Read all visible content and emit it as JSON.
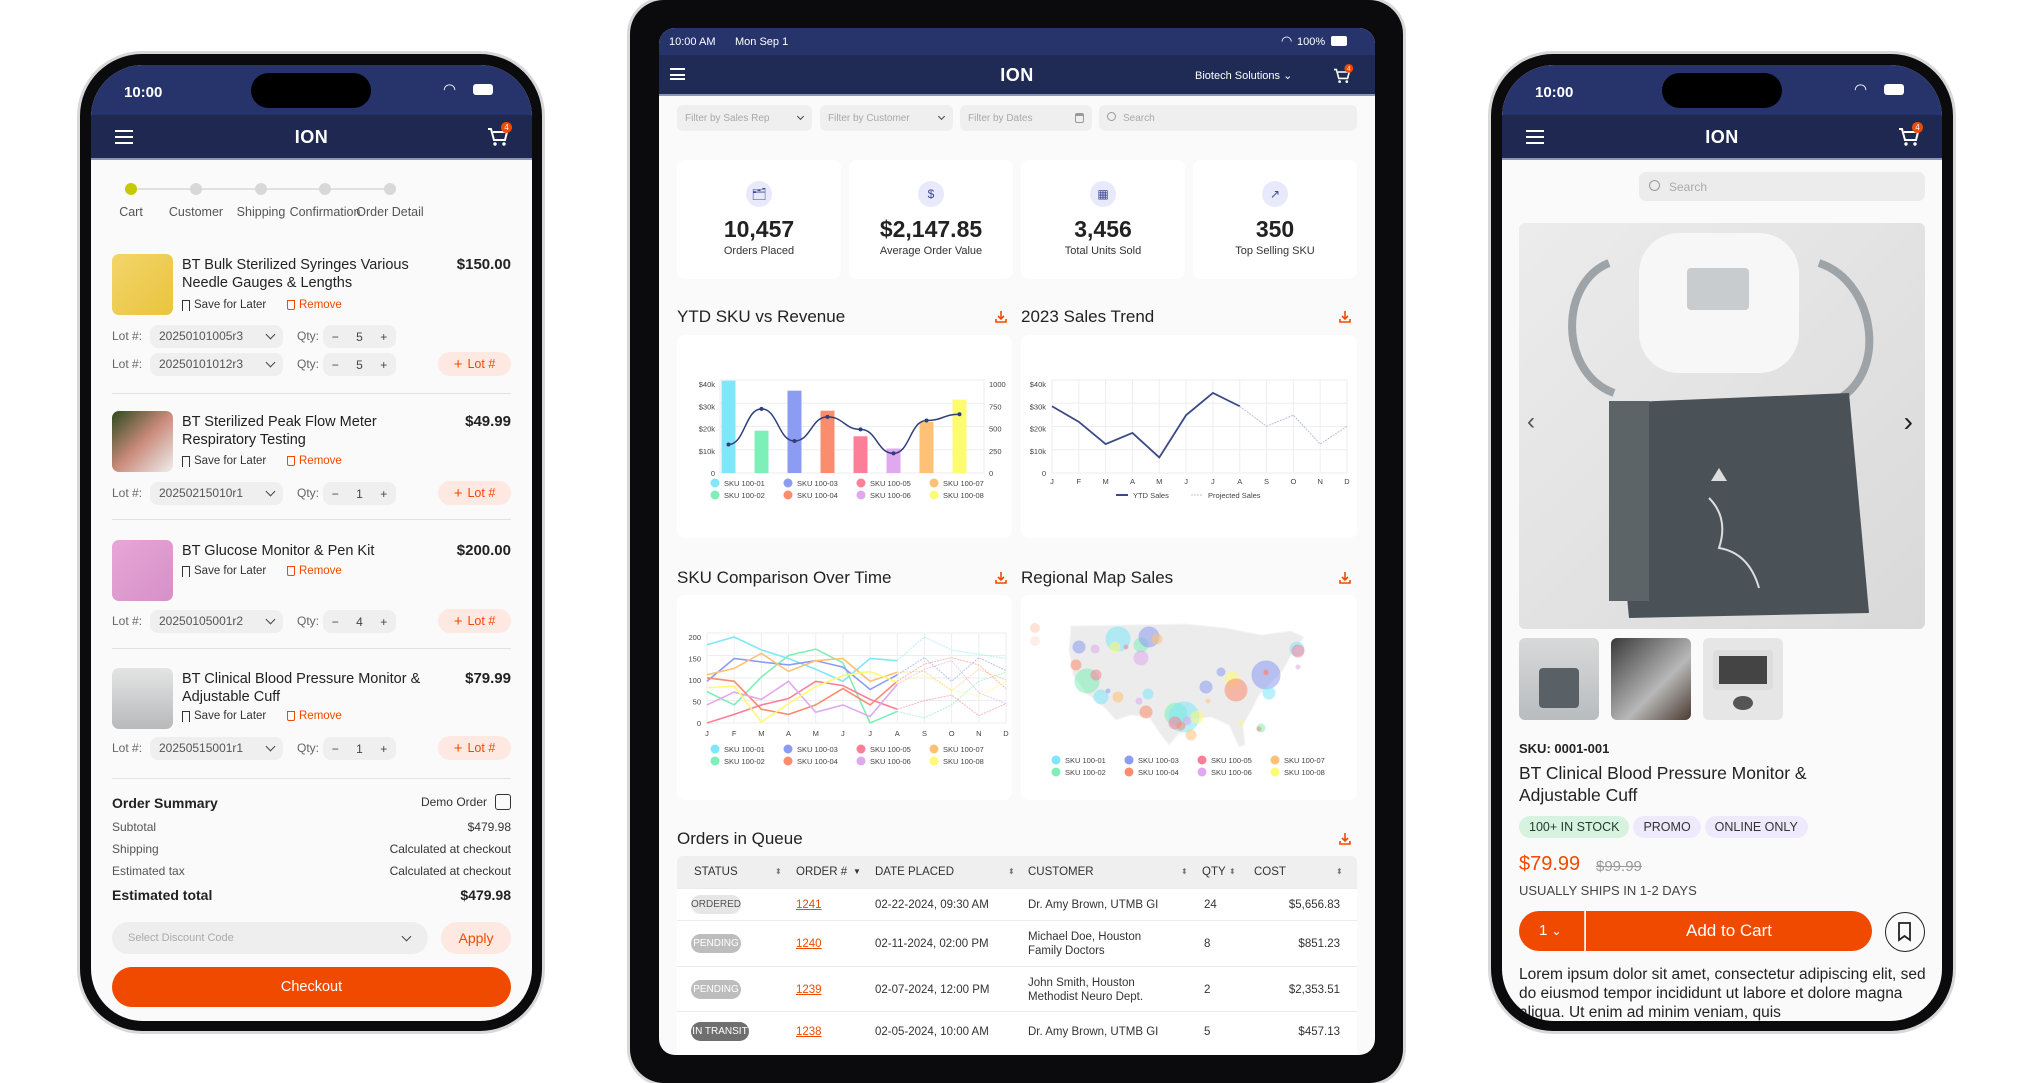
{
  "left_phone": {
    "status_time": "10:00",
    "brand": "ION",
    "cart_count": "4",
    "steps": [
      "Cart",
      "Customer",
      "Shipping",
      "Confirmation",
      "Order Detail"
    ],
    "active_step": 0,
    "save_label": "Save for Later",
    "remove_label": "Remove",
    "lot_label": "Lot #:",
    "qty_label": "Qty:",
    "add_lot_label": "Lot #",
    "items": [
      {
        "title": "BT Bulk Sterilized Syringes Various Needle Gauges & Lengths",
        "price": "$150.00",
        "lots": [
          {
            "lot": "20250101005r3",
            "qty": "5"
          },
          {
            "lot": "20250101012r3",
            "qty": "5"
          }
        ]
      },
      {
        "title": "BT Sterilized Peak Flow Meter Respiratory Testing",
        "price": "$49.99",
        "lots": [
          {
            "lot": "20250215010r1",
            "qty": "1"
          }
        ]
      },
      {
        "title": "BT Glucose Monitor & Pen Kit",
        "price": "$200.00",
        "lots": [
          {
            "lot": "20250105001r2",
            "qty": "4"
          }
        ]
      },
      {
        "title": "BT Clinical Blood Pressure Monitor & Adjustable Cuff",
        "price": "$79.99",
        "lots": [
          {
            "lot": "20250515001r1",
            "qty": "1"
          }
        ]
      }
    ],
    "summary": {
      "title": "Order Summary",
      "demo_label": "Demo Order",
      "demo_checked": false,
      "subtotal_label": "Subtotal",
      "subtotal": "$479.98",
      "shipping_label": "Shipping",
      "shipping": "Calculated at checkout",
      "tax_label": "Estimated tax",
      "tax": "Calculated at checkout",
      "total_label": "Estimated total",
      "total": "$479.98"
    },
    "discount_placeholder": "Select Discount Code",
    "apply_label": "Apply",
    "checkout_label": "Checkout"
  },
  "tablet": {
    "status_time": "10:00 AM",
    "status_date": "Mon Sep 1",
    "battery": "100%",
    "brand": "ION",
    "account": "Biotech Solutions",
    "cart_count": "4",
    "filters": {
      "sales_rep": "Filter by Sales Rep",
      "customer": "Filter by Customer",
      "dates": "Filter by Dates",
      "search": "Search"
    },
    "kpis": [
      {
        "value": "10,457",
        "label": "Orders Placed",
        "icon": "orders-icon"
      },
      {
        "value": "$2,147.85",
        "label": "Average Order Value",
        "icon": "invoice-dollar-icon"
      },
      {
        "value": "3,456",
        "label": "Total Units Sold",
        "icon": "units-icon"
      },
      {
        "value": "350",
        "label": "Top Selling SKU",
        "icon": "trending-chart-icon"
      }
    ],
    "sections": {
      "ytd": "YTD SKU vs Revenue",
      "trend": "2023 Sales Trend",
      "comparison": "SKU Comparison Over Time",
      "map": "Regional Map Sales",
      "orders": "Orders in Queue"
    },
    "sku_colors": [
      "#7ee8fa",
      "#7eefb9",
      "#8c9cf2",
      "#fb8c6e",
      "#fb7f97",
      "#e0a8ee",
      "#ffc175",
      "#fdfb72"
    ],
    "chart_data": [
      {
        "type": "bar",
        "title": "YTD SKU vs Revenue",
        "categories": [
          "SKU 100-01",
          "SKU 100-02",
          "SKU 100-03",
          "SKU 100-04",
          "SKU 100-05",
          "SKU 100-06",
          "SKU 100-07",
          "SKU 100-08"
        ],
        "values": [
          42,
          19,
          37,
          28,
          16.5,
          11,
          23,
          33
        ],
        "line_values": [
          320,
          720,
          360,
          630,
          490,
          220,
          590,
          660
        ],
        "y_ticks": [
          "0",
          "$10k",
          "$20k",
          "$30k",
          "$40k"
        ],
        "y2_ticks": [
          "0",
          "250",
          "500",
          "750",
          "1000"
        ],
        "ylim": [
          0,
          40
        ],
        "y2lim": [
          0,
          1000
        ],
        "line_color": "#2f3f7a",
        "legend": "bottom"
      },
      {
        "type": "line",
        "title": "2023 Sales Trend",
        "x": [
          "J",
          "F",
          "M",
          "A",
          "M",
          "J",
          "J",
          "A",
          "S",
          "O",
          "N",
          "D"
        ],
        "series": [
          {
            "name": "YTD Sales",
            "values": [
              30,
              23,
              13,
              18,
              7,
              26,
              36,
              30,
              null,
              null,
              null,
              null
            ],
            "color": "#3b4a85"
          },
          {
            "name": "Projected Sales",
            "values": [
              null,
              null,
              null,
              null,
              null,
              null,
              null,
              30,
              21,
              26,
              13,
              21
            ],
            "color": "#b9bfdc",
            "dashed": true
          }
        ],
        "y_ticks": [
          "0",
          "$10k",
          "$20k",
          "$30k",
          "$40k"
        ],
        "ylim": [
          0,
          40
        ],
        "grid": true,
        "legend": "bottom"
      },
      {
        "type": "line",
        "title": "SKU Comparison Over Time",
        "x": [
          "J",
          "F",
          "M",
          "A",
          "M",
          "J",
          "J",
          "A",
          "S",
          "O",
          "N",
          "D"
        ],
        "actual_through": "A",
        "series": [
          {
            "name": "SKU 100-01",
            "values": [
              182,
              200,
              170,
              150,
              125,
              97,
              150,
              145,
              200,
              170,
              160,
              150
            ]
          },
          {
            "name": "SKU 100-02",
            "values": [
              73,
              42,
              107,
              157,
              172,
              140,
              0,
              27,
              12,
              42,
              97,
              118
            ]
          },
          {
            "name": "SKU 100-03",
            "values": [
              97,
              150,
              142,
              135,
              145,
              130,
              78,
              112,
              152,
              97,
              152,
              122
            ]
          },
          {
            "name": "SKU 100-04",
            "values": [
              105,
              97,
              32,
              20,
              42,
              80,
              42,
              97,
              137,
              152,
              135,
              80
            ]
          },
          {
            "name": "SKU 100-05",
            "values": [
              0,
              20,
              42,
              57,
              97,
              87,
              55,
              32,
              52,
              65,
              17,
              45
            ]
          },
          {
            "name": "SKU 100-06",
            "values": [
              42,
              72,
              55,
              97,
              25,
              42,
              15,
              90,
              125,
              145,
              70,
              45
            ]
          },
          {
            "name": "SKU 100-07",
            "values": [
              112,
              127,
              162,
              120,
              145,
              150,
              97,
              118,
              120,
              75,
              125,
              100
            ]
          },
          {
            "name": "SKU 100-08",
            "values": [
              82,
              86,
              2,
              45,
              85,
              110,
              120,
              95,
              112,
              77,
              62,
              97
            ]
          }
        ],
        "y_ticks": [
          "0",
          "50",
          "100",
          "150",
          "200"
        ],
        "ylim": [
          0,
          200
        ],
        "grid": true,
        "legend": "bottom"
      },
      {
        "type": "scatter",
        "title": "Regional Map Sales",
        "series_names": [
          "SKU 100-01",
          "SKU 100-02",
          "SKU 100-03",
          "SKU 100-04",
          "SKU 100-05",
          "SKU 100-06",
          "SKU 100-07",
          "SKU 100-08"
        ],
        "legend": "bottom"
      }
    ],
    "orders": {
      "columns": [
        "STATUS",
        "ORDER #",
        "DATE PLACED",
        "CUSTOMER",
        "QTY",
        "COST"
      ],
      "rows": [
        {
          "status": "ORDERED",
          "order": "1241",
          "date": "02-22-2024, 09:30 AM",
          "customer": "Dr. Amy Brown, UTMB GI",
          "qty": "24",
          "cost": "$5,656.83"
        },
        {
          "status": "PENDING",
          "order": "1240",
          "date": "02-11-2024, 02:00 PM",
          "customer": "Michael Doe, Houston Family Doctors",
          "qty": "8",
          "cost": "$851.23"
        },
        {
          "status": "PENDING",
          "order": "1239",
          "date": "02-07-2024, 12:00 PM",
          "customer": "John Smith, Houston Methodist Neuro Dept.",
          "qty": "2",
          "cost": "$2,353.51"
        },
        {
          "status": "IN TRANSIT",
          "order": "1238",
          "date": "02-05-2024, 10:00 AM",
          "customer": "Dr. Amy Brown, UTMB GI",
          "qty": "5",
          "cost": "$457.13"
        }
      ]
    }
  },
  "right_phone": {
    "status_time": "10:00",
    "brand": "ION",
    "cart_count": "4",
    "search_placeholder": "Search",
    "sku": "SKU: 0001-001",
    "title": "BT Clinical Blood Pressure Monitor & Adjustable Cuff",
    "chips": [
      "100+ IN STOCK",
      "PROMO",
      "ONLINE ONLY"
    ],
    "price": "$79.99",
    "old_price": "$99.99",
    "shipping_note": "USUALLY SHIPS IN 1-2 DAYS",
    "qty": "1",
    "add_to_cart": "Add to Cart",
    "description": "Lorem ipsum dolor sit amet, consectetur adipiscing elit, sed do eiusmod tempor incididunt ut labore et dolore magna aliqua. Ut enim ad minim veniam, quis",
    "accent": "#f04a00"
  }
}
